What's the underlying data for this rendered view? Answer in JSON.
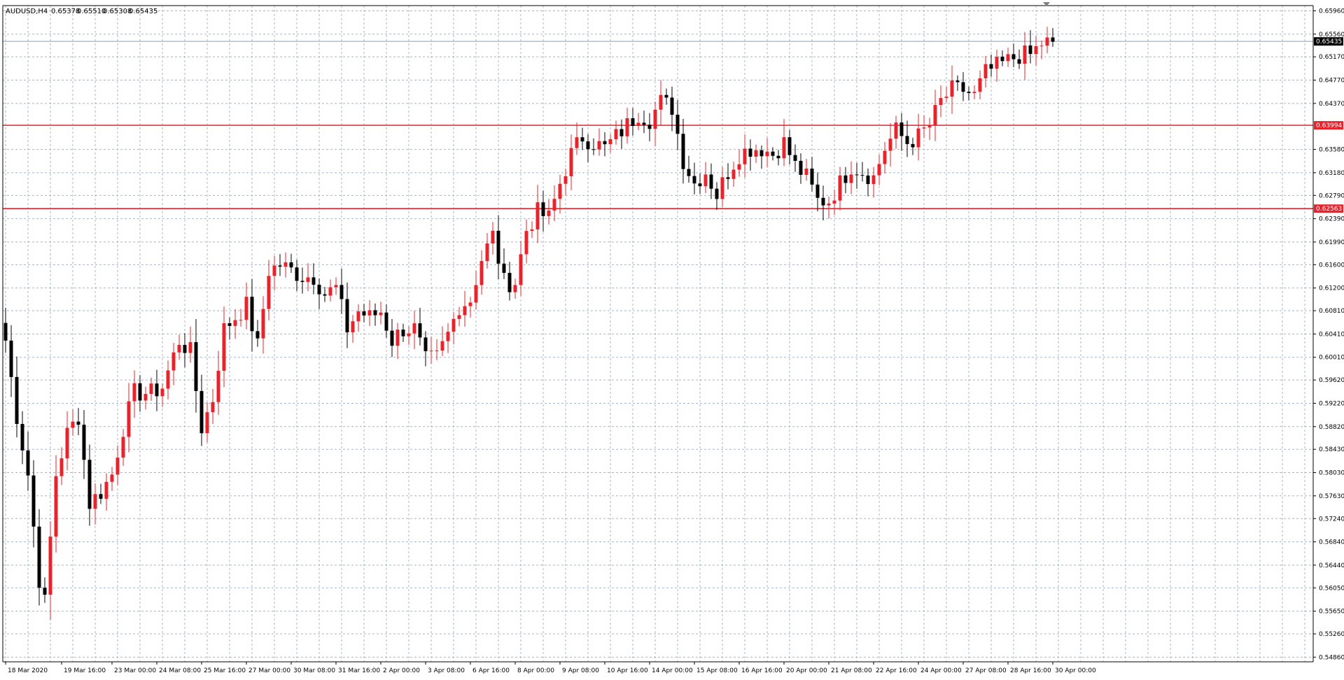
{
  "chart_data": {
    "type": "candlestick",
    "header": {
      "symbol_tf": "AUDUSD,H4",
      "open": "0.65378",
      "high": "0.65510",
      "low": "0.65308",
      "close": "0.65435"
    },
    "y_ticks": [
      "0.65960",
      "0.65560",
      "0.65170",
      "0.64770",
      "0.64370",
      "0.63580",
      "0.63180",
      "0.62790",
      "0.62390",
      "0.61990",
      "0.61600",
      "0.61200",
      "0.60810",
      "0.60410",
      "0.60010",
      "0.59620",
      "0.59220",
      "0.58820",
      "0.58430",
      "0.58030",
      "0.57630",
      "0.57240",
      "0.56840",
      "0.56440",
      "0.56050",
      "0.55650",
      "0.55260",
      "0.54860"
    ],
    "x_ticks": [
      {
        "label": "18 Mar 2020",
        "index": 0
      },
      {
        "label": "19 Mar 16:00",
        "index": 10
      },
      {
        "label": "23 Mar 00:00",
        "index": 19
      },
      {
        "label": "24 Mar 08:00",
        "index": 27
      },
      {
        "label": "25 Mar 16:00",
        "index": 35
      },
      {
        "label": "27 Mar 00:00",
        "index": 43
      },
      {
        "label": "30 Mar 08:00",
        "index": 51
      },
      {
        "label": "31 Mar 16:00",
        "index": 59
      },
      {
        "label": "2 Apr 00:00",
        "index": 67
      },
      {
        "label": "3 Apr 08:00",
        "index": 75
      },
      {
        "label": "6 Apr 16:00",
        "index": 83
      },
      {
        "label": "8 Apr 00:00",
        "index": 91
      },
      {
        "label": "9 Apr 08:00",
        "index": 99
      },
      {
        "label": "10 Apr 16:00",
        "index": 107
      },
      {
        "label": "14 Apr 00:00",
        "index": 115
      },
      {
        "label": "15 Apr 08:00",
        "index": 123
      },
      {
        "label": "16 Apr 16:00",
        "index": 131
      },
      {
        "label": "20 Apr 00:00",
        "index": 139
      },
      {
        "label": "21 Apr 08:00",
        "index": 147
      },
      {
        "label": "22 Apr 16:00",
        "index": 155
      },
      {
        "label": "24 Apr 00:00",
        "index": 163
      },
      {
        "label": "27 Apr 08:00",
        "index": 171
      },
      {
        "label": "28 Apr 16:00",
        "index": 179
      },
      {
        "label": "30 Apr 00:00",
        "index": 187
      }
    ],
    "price_range": [
      0.5478,
      0.6605
    ],
    "grid": true,
    "current_price": {
      "label": "0.65435",
      "value": 0.65435
    },
    "levels": [
      {
        "label": "0.63994",
        "value": 0.63994,
        "color": "#e8232b"
      },
      {
        "label": "0.62563",
        "value": 0.62563,
        "color": "#e8232b"
      }
    ],
    "bull_color": "#e8232b",
    "bear_color": "#000000",
    "waypoints": [
      [
        0,
        0.603
      ],
      [
        2,
        0.59
      ],
      [
        4,
        0.58
      ],
      [
        6,
        0.562
      ],
      [
        7,
        0.558
      ],
      [
        9,
        0.58
      ],
      [
        11,
        0.587
      ],
      [
        13,
        0.59
      ],
      [
        15,
        0.575
      ],
      [
        17,
        0.577
      ],
      [
        19,
        0.58
      ],
      [
        21,
        0.588
      ],
      [
        23,
        0.594
      ],
      [
        26,
        0.594
      ],
      [
        28,
        0.595
      ],
      [
        31,
        0.603
      ],
      [
        33,
        0.601
      ],
      [
        35,
        0.588
      ],
      [
        37,
        0.593
      ],
      [
        39,
        0.605
      ],
      [
        41,
        0.607
      ],
      [
        43,
        0.609
      ],
      [
        45,
        0.602
      ],
      [
        47,
        0.615
      ],
      [
        49,
        0.616
      ],
      [
        51,
        0.615
      ],
      [
        53,
        0.614
      ],
      [
        55,
        0.614
      ],
      [
        57,
        0.611
      ],
      [
        59,
        0.612
      ],
      [
        61,
        0.605
      ],
      [
        63,
        0.608
      ],
      [
        65,
        0.607
      ],
      [
        67,
        0.608
      ],
      [
        69,
        0.603
      ],
      [
        71,
        0.605
      ],
      [
        73,
        0.605
      ],
      [
        75,
        0.5995
      ],
      [
        77,
        0.6
      ],
      [
        79,
        0.604
      ],
      [
        81,
        0.609
      ],
      [
        83,
        0.61
      ],
      [
        85,
        0.617
      ],
      [
        87,
        0.621
      ],
      [
        89,
        0.613
      ],
      [
        91,
        0.613
      ],
      [
        93,
        0.622
      ],
      [
        95,
        0.625
      ],
      [
        97,
        0.624
      ],
      [
        99,
        0.63
      ],
      [
        101,
        0.635
      ],
      [
        103,
        0.638
      ],
      [
        105,
        0.637
      ],
      [
        107,
        0.636
      ],
      [
        109,
        0.638
      ],
      [
        111,
        0.64
      ],
      [
        113,
        0.642
      ],
      [
        115,
        0.641
      ],
      [
        117,
        0.644
      ],
      [
        119,
        0.643
      ],
      [
        121,
        0.634
      ],
      [
        123,
        0.63
      ],
      [
        125,
        0.632
      ],
      [
        127,
        0.628
      ],
      [
        129,
        0.632
      ],
      [
        131,
        0.635
      ],
      [
        133,
        0.636
      ],
      [
        135,
        0.636
      ],
      [
        137,
        0.635
      ],
      [
        139,
        0.637
      ],
      [
        141,
        0.633
      ],
      [
        143,
        0.631
      ],
      [
        145,
        0.627
      ],
      [
        147,
        0.627
      ],
      [
        149,
        0.63
      ],
      [
        151,
        0.633
      ],
      [
        153,
        0.632
      ],
      [
        155,
        0.631
      ],
      [
        157,
        0.636
      ],
      [
        159,
        0.639
      ],
      [
        161,
        0.637
      ],
      [
        163,
        0.638
      ],
      [
        165,
        0.64
      ],
      [
        167,
        0.644
      ],
      [
        169,
        0.646
      ],
      [
        171,
        0.646
      ],
      [
        173,
        0.645
      ],
      [
        175,
        0.649
      ],
      [
        177,
        0.65
      ],
      [
        179,
        0.651
      ],
      [
        181,
        0.652
      ],
      [
        183,
        0.652
      ],
      [
        185,
        0.654
      ],
      [
        187,
        0.6543
      ]
    ]
  }
}
